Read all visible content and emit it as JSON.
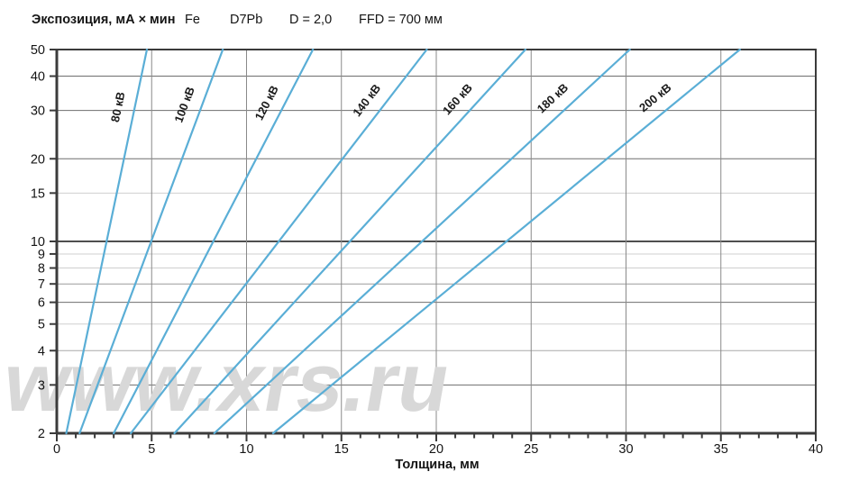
{
  "header": {
    "title": "Экспозиция, мА × мин",
    "material": "Fe",
    "film": "D7Pb",
    "density": "D = 2,0",
    "ffd": "FFD = 700 мм"
  },
  "watermark": "www.xrs.ru",
  "chart_data": {
    "type": "line",
    "title": "Экспозиция, мА × мин  (Fe, D7Pb, D = 2,0, FFD = 700 мм)",
    "xlabel": "Толщина, мм",
    "ylabel": "Экспозиция, мА × мин",
    "x_range": [
      0,
      40
    ],
    "x_ticks": [
      0,
      5,
      10,
      15,
      20,
      25,
      30,
      35,
      40
    ],
    "x_minor_step": 1,
    "y_scale": "log",
    "y_range": [
      2,
      50
    ],
    "y_ticks": [
      2,
      3,
      4,
      5,
      6,
      7,
      8,
      9,
      10,
      15,
      20,
      30,
      40,
      50
    ],
    "grid_on": true,
    "legend_position": "labels-on-lines",
    "series": [
      {
        "name": "80 кВ",
        "kv": 80,
        "points": [
          [
            0.5,
            2
          ],
          [
            4.75,
            50
          ]
        ]
      },
      {
        "name": "100 кВ",
        "kv": 100,
        "points": [
          [
            1.2,
            2
          ],
          [
            8.75,
            50
          ]
        ]
      },
      {
        "name": "120 кВ",
        "kv": 120,
        "points": [
          [
            3.0,
            2
          ],
          [
            13.5,
            50
          ]
        ]
      },
      {
        "name": "140 кВ",
        "kv": 140,
        "points": [
          [
            3.9,
            2
          ],
          [
            19.5,
            50
          ]
        ]
      },
      {
        "name": "160 кВ",
        "kv": 160,
        "points": [
          [
            6.2,
            2
          ],
          [
            24.7,
            50
          ]
        ]
      },
      {
        "name": "180 кВ",
        "kv": 180,
        "points": [
          [
            8.3,
            2
          ],
          [
            30.2,
            50
          ]
        ]
      },
      {
        "name": "200 кВ",
        "kv": 200,
        "points": [
          [
            11.4,
            2
          ],
          [
            36.0,
            50
          ]
        ]
      }
    ],
    "colors": {
      "line": "#5aaed6",
      "frame": "#3b3b3b",
      "tick_text": "#141414",
      "watermark": "#d8d8d8",
      "emphasis_line": "#141414"
    },
    "grid": {
      "horizontal": [
        {
          "v": 40,
          "color": "#6e6e6e",
          "w": 1
        },
        {
          "v": 30,
          "color": "#6e6e6e",
          "w": 1
        },
        {
          "v": 20,
          "color": "#6e6e6e",
          "w": 1
        },
        {
          "v": 15,
          "color": "#cfcfcf",
          "w": 1
        },
        {
          "v": 10,
          "color": "#141414",
          "w": 1.6
        },
        {
          "v": 9,
          "color": "#cfcfcf",
          "w": 1
        },
        {
          "v": 8,
          "color": "#cfcfcf",
          "w": 1
        },
        {
          "v": 7,
          "color": "#9a9a9a",
          "w": 1
        },
        {
          "v": 6,
          "color": "#6e6e6e",
          "w": 1
        },
        {
          "v": 5,
          "color": "#cfcfcf",
          "w": 1
        },
        {
          "v": 4,
          "color": "#a8a8a8",
          "w": 1
        },
        {
          "v": 3,
          "color": "#6e6e6e",
          "w": 1
        }
      ],
      "vertical": {
        "values": [
          5,
          10,
          15,
          20,
          25,
          30,
          35
        ],
        "color": "#8a8a8a",
        "w": 1
      }
    }
  }
}
